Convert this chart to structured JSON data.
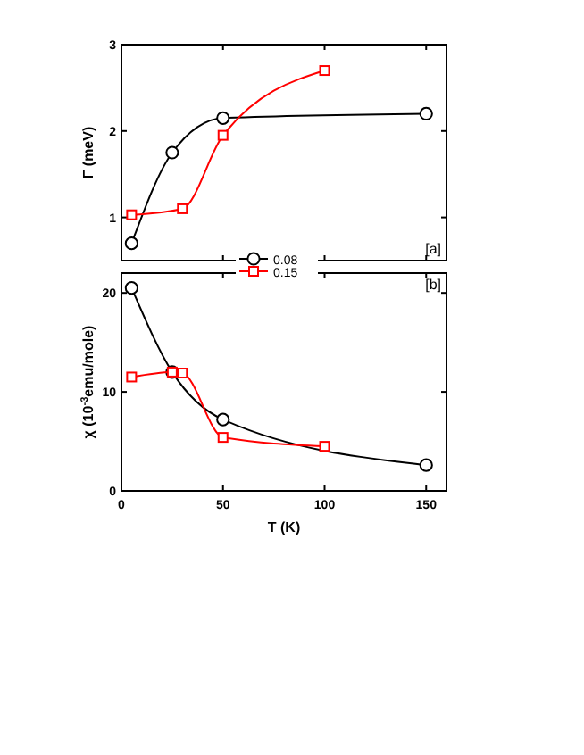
{
  "chart_data": [
    {
      "type": "line",
      "ylabel": "Γ (meV)",
      "xlim": [
        0,
        160
      ],
      "xticks": [
        0,
        50,
        100,
        150
      ],
      "ylim": [
        0.5,
        3
      ],
      "yticks": [
        1,
        2,
        3
      ],
      "tick_labels": "y",
      "grid": false,
      "legend": "bottom",
      "annotations": [
        "[a]"
      ],
      "series": [
        {
          "name": "0.08",
          "color": "#000000",
          "marker": "circle",
          "x": [
            5,
            25,
            50,
            150
          ],
          "values": [
            0.7,
            1.75,
            2.15,
            2.2
          ]
        },
        {
          "name": "0.15",
          "color": "#ff0000",
          "marker": "square",
          "x": [
            5,
            30,
            50,
            100
          ],
          "values": [
            1.03,
            1.1,
            1.95,
            2.7
          ]
        }
      ]
    },
    {
      "type": "line",
      "xlabel": "T (K)",
      "ylabel": "χ (10$^{-3}$emu/mole)",
      "xlim": [
        0,
        160
      ],
      "xticks": [
        0,
        50,
        100,
        150
      ],
      "ylim": [
        0,
        22
      ],
      "yticks": [
        0,
        10,
        20
      ],
      "grid": false,
      "annotations": [
        "[b]"
      ],
      "series": [
        {
          "color": "#000000",
          "marker": "circle",
          "x": [
            5,
            25,
            50,
            150
          ],
          "values": [
            20.5,
            12,
            7.2,
            2.6
          ]
        },
        {
          "color": "#ff0000",
          "marker": "square",
          "x": [
            5,
            25,
            30,
            50,
            100
          ],
          "values": [
            11.5,
            12,
            11.9,
            5.4,
            4.5
          ]
        }
      ]
    }
  ]
}
